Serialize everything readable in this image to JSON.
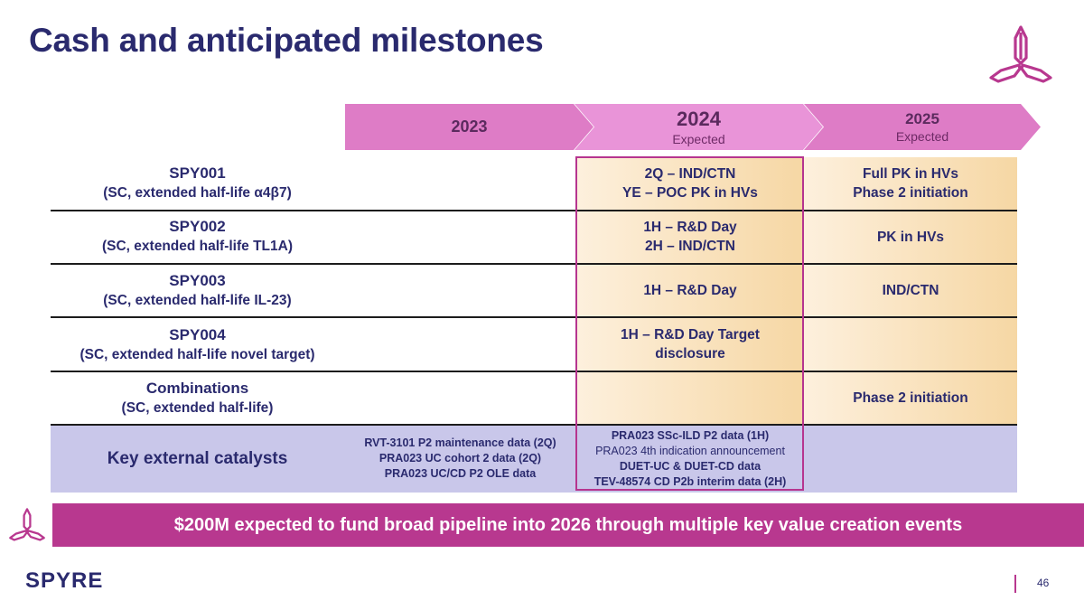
{
  "title": "Cash and anticipated milestones",
  "colors": {
    "navy": "#2a2a6e",
    "magenta": "#b8388f",
    "pink": "#de7cc6",
    "lavender": "#c9c7ea",
    "peach": "#f6d7a4"
  },
  "timeline": [
    {
      "year": "2023",
      "sub": ""
    },
    {
      "year": "2024",
      "sub": "Expected"
    },
    {
      "year": "2025",
      "sub": "Expected"
    }
  ],
  "rows": [
    {
      "name": "SPY001",
      "sub_pre": "(SC, extended half-life ",
      "sub_target": "α4β7",
      "sub_post": ")",
      "y2024": [
        "2Q – IND/CTN",
        "YE – POC PK in HVs"
      ],
      "y2025": [
        "Full PK in HVs",
        "Phase 2 initiation"
      ]
    },
    {
      "name": "SPY002",
      "sub_pre": "(SC, extended half-life ",
      "sub_target": "TL1A",
      "sub_post": ")",
      "y2024": [
        "1H – R&D Day",
        "2H – IND/CTN"
      ],
      "y2025": [
        "PK in HVs"
      ]
    },
    {
      "name": "SPY003",
      "sub_pre": "(SC, extended half-life ",
      "sub_target": "IL-23",
      "sub_post": ")",
      "y2024": [
        "1H – R&D Day"
      ],
      "y2025": [
        "IND/CTN"
      ]
    },
    {
      "name": "SPY004",
      "sub_pre": "(SC, extended half-life ",
      "sub_target": "novel target",
      "sub_post": ")",
      "y2024": [
        "1H – R&D Day Target",
        "disclosure"
      ],
      "y2025": []
    },
    {
      "name": "Combinations",
      "sub_pre": "(SC, extended half-life)",
      "sub_target": "",
      "sub_post": "",
      "y2024": [],
      "y2025": [
        "Phase 2 initiation"
      ]
    }
  ],
  "catalysts": {
    "label": "Key external catalysts",
    "y2023": [
      "RVT-3101 P2 maintenance data (2Q)",
      "PRA023 UC cohort 2 data (2Q)",
      "PRA023 UC/CD P2 OLE data"
    ],
    "y2024": [
      "PRA023 SSc-ILD P2 data (1H)",
      "PRA023 4th indication announcement",
      "DUET-UC & DUET-CD data",
      "TEV-48574 CD P2b interim data (2H)"
    ]
  },
  "banner": "$200M expected to fund broad pipeline into 2026 through multiple key value creation events",
  "brand": "SPYRE",
  "page_number": "46"
}
